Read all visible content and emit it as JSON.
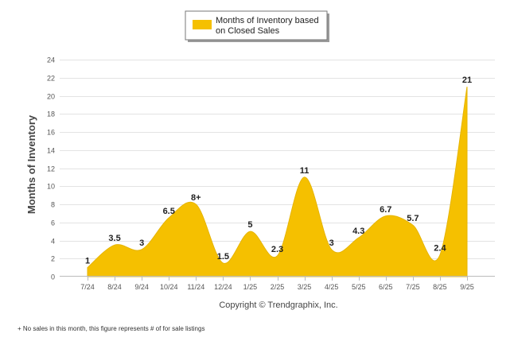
{
  "chart_data": {
    "type": "area",
    "title": "",
    "xlabel": "",
    "ylabel": "Months of Inventory",
    "ylim": [
      0,
      24
    ],
    "yticks": [
      0,
      2,
      4,
      6,
      8,
      10,
      12,
      14,
      16,
      18,
      20,
      22,
      24
    ],
    "categories": [
      "7/24",
      "8/24",
      "9/24",
      "10/24",
      "11/24",
      "12/24",
      "1/25",
      "2/25",
      "3/25",
      "4/25",
      "5/25",
      "6/25",
      "7/25",
      "8/25",
      "9/25"
    ],
    "series": [
      {
        "name": "Months of Inventory based on Closed Sales",
        "color": "#F5C000",
        "values": [
          1,
          3.5,
          3,
          6.5,
          8,
          1.5,
          5,
          2.3,
          11,
          3,
          4.3,
          6.7,
          5.7,
          2.4,
          21
        ],
        "labels": [
          "1",
          "3.5",
          "3",
          "6.5",
          "8+",
          "1.5",
          "5",
          "2.3",
          "11",
          "3",
          "4.3",
          "6.7",
          "5.7",
          "2.4",
          "21"
        ]
      }
    ],
    "legend": {
      "position": "top-center",
      "line1": "Months of Inventory based",
      "line2": "on Closed Sales"
    },
    "grid": true
  },
  "copyright": "Copyright © Trendgraphix, Inc.",
  "footnote": "+ No sales in this month, this figure represents # of for sale listings"
}
